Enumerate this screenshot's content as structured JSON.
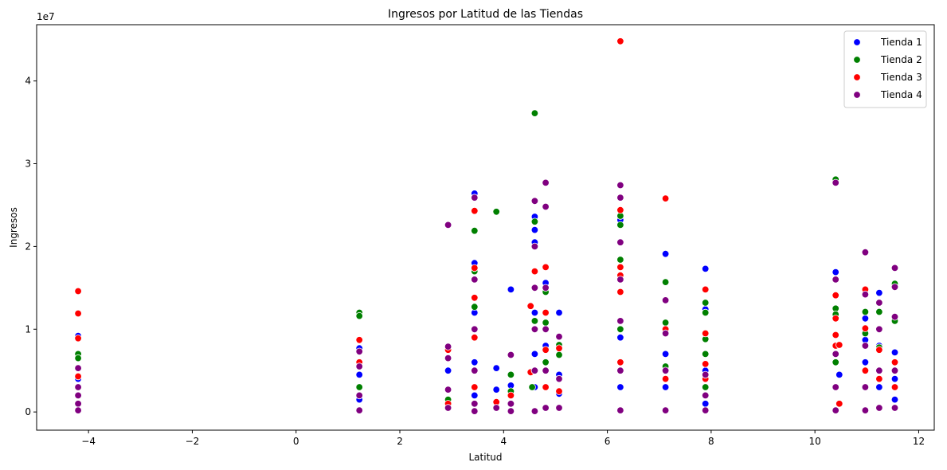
{
  "chart_data": {
    "type": "scatter",
    "title": "Ingresos por Latitud de las Tiendas",
    "xlabel": "Latitud",
    "ylabel": "Ingresos",
    "y_offset_label": "1e7",
    "xlim": [
      -5,
      12.3
    ],
    "ylim": [
      -0.22,
      4.68
    ],
    "x_ticks": [
      -4,
      -2,
      0,
      2,
      4,
      6,
      8,
      10,
      12
    ],
    "x_tick_labels": [
      "−4",
      "−2",
      "0",
      "2",
      "4",
      "6",
      "8",
      "10",
      "12"
    ],
    "y_ticks": [
      0,
      1,
      2,
      3,
      4
    ],
    "y_tick_labels": [
      "0",
      "1",
      "2",
      "3",
      "4"
    ],
    "grid": false,
    "legend_position": "top-right",
    "series": [
      {
        "name": "Tienda 1",
        "color": "#0000ff",
        "points": [
          [
            -4.2,
            0.92
          ],
          [
            -4.2,
            0.4
          ],
          [
            -4.2,
            0.1
          ],
          [
            1.22,
            0.77
          ],
          [
            1.22,
            0.45
          ],
          [
            1.22,
            0.15
          ],
          [
            2.93,
            0.5
          ],
          [
            2.93,
            0.1
          ],
          [
            3.44,
            2.64
          ],
          [
            3.44,
            1.8
          ],
          [
            3.44,
            1.2
          ],
          [
            3.44,
            0.6
          ],
          [
            3.44,
            0.2
          ],
          [
            3.86,
            0.53
          ],
          [
            3.86,
            0.27
          ],
          [
            4.14,
            1.48
          ],
          [
            4.14,
            0.32
          ],
          [
            4.14,
            0.1
          ],
          [
            4.6,
            2.36
          ],
          [
            4.6,
            2.2
          ],
          [
            4.6,
            2.05
          ],
          [
            4.6,
            1.7
          ],
          [
            4.6,
            1.2
          ],
          [
            4.6,
            0.7
          ],
          [
            4.6,
            0.3
          ],
          [
            4.81,
            1.56
          ],
          [
            4.81,
            0.8
          ],
          [
            4.81,
            0.3
          ],
          [
            5.07,
            1.2
          ],
          [
            5.07,
            0.45
          ],
          [
            5.07,
            0.22
          ],
          [
            6.25,
            2.32
          ],
          [
            6.25,
            1.6
          ],
          [
            6.25,
            0.9
          ],
          [
            6.25,
            0.3
          ],
          [
            7.12,
            1.91
          ],
          [
            7.12,
            0.7
          ],
          [
            7.12,
            0.3
          ],
          [
            7.89,
            1.73
          ],
          [
            7.89,
            1.24
          ],
          [
            7.89,
            0.5
          ],
          [
            7.89,
            0.1
          ],
          [
            10.4,
            1.69
          ],
          [
            10.4,
            0.8
          ],
          [
            10.4,
            0.3
          ],
          [
            10.47,
            0.45
          ],
          [
            10.97,
            1.13
          ],
          [
            10.97,
            0.87
          ],
          [
            10.97,
            0.6
          ],
          [
            10.97,
            0.3
          ],
          [
            11.24,
            1.44
          ],
          [
            11.24,
            0.8
          ],
          [
            11.24,
            0.3
          ],
          [
            11.54,
            0.72
          ],
          [
            11.54,
            0.4
          ],
          [
            11.54,
            0.15
          ]
        ]
      },
      {
        "name": "Tienda 2",
        "color": "#008000",
        "points": [
          [
            -4.2,
            0.7
          ],
          [
            -4.2,
            0.65
          ],
          [
            -4.2,
            0.3
          ],
          [
            1.22,
            1.2
          ],
          [
            1.22,
            1.16
          ],
          [
            1.22,
            0.3
          ],
          [
            2.93,
            0.15
          ],
          [
            3.44,
            2.19
          ],
          [
            3.44,
            1.7
          ],
          [
            3.44,
            1.27
          ],
          [
            3.44,
            0.5
          ],
          [
            3.86,
            2.42
          ],
          [
            4.14,
            0.45
          ],
          [
            4.14,
            0.25
          ],
          [
            4.55,
            0.3
          ],
          [
            4.6,
            3.61
          ],
          [
            4.6,
            2.3
          ],
          [
            4.6,
            1.1
          ],
          [
            4.6,
            0.5
          ],
          [
            4.81,
            1.45
          ],
          [
            4.81,
            1.08
          ],
          [
            4.81,
            0.6
          ],
          [
            5.07,
            0.81
          ],
          [
            5.07,
            0.69
          ],
          [
            6.25,
            2.37
          ],
          [
            6.25,
            2.26
          ],
          [
            6.25,
            1.84
          ],
          [
            6.25,
            1.0
          ],
          [
            7.12,
            1.57
          ],
          [
            7.12,
            1.08
          ],
          [
            7.12,
            0.55
          ],
          [
            7.89,
            1.32
          ],
          [
            7.89,
            1.2
          ],
          [
            7.89,
            0.88
          ],
          [
            7.89,
            0.7
          ],
          [
            7.89,
            0.3
          ],
          [
            10.4,
            2.81
          ],
          [
            10.4,
            1.25
          ],
          [
            10.4,
            1.18
          ],
          [
            10.4,
            0.6
          ],
          [
            10.97,
            1.21
          ],
          [
            10.97,
            0.95
          ],
          [
            11.24,
            1.21
          ],
          [
            11.24,
            0.78
          ],
          [
            11.54,
            1.55
          ],
          [
            11.54,
            1.1
          ],
          [
            11.54,
            0.6
          ]
        ]
      },
      {
        "name": "Tienda 3",
        "color": "#ff0000",
        "points": [
          [
            -4.2,
            1.46
          ],
          [
            -4.2,
            1.19
          ],
          [
            -4.2,
            0.89
          ],
          [
            -4.2,
            0.43
          ],
          [
            1.22,
            0.87
          ],
          [
            1.22,
            0.6
          ],
          [
            2.93,
            0.75
          ],
          [
            2.93,
            0.1
          ],
          [
            3.44,
            2.43
          ],
          [
            3.44,
            1.74
          ],
          [
            3.44,
            1.38
          ],
          [
            3.44,
            0.9
          ],
          [
            3.44,
            0.3
          ],
          [
            3.86,
            0.12
          ],
          [
            4.14,
            0.2
          ],
          [
            4.52,
            1.28
          ],
          [
            4.52,
            0.48
          ],
          [
            4.6,
            1.7
          ],
          [
            4.6,
            1.5
          ],
          [
            4.6,
            1.0
          ],
          [
            4.6,
            0.5
          ],
          [
            4.81,
            1.75
          ],
          [
            4.81,
            1.2
          ],
          [
            4.81,
            0.75
          ],
          [
            4.81,
            0.3
          ],
          [
            5.07,
            0.77
          ],
          [
            5.07,
            0.25
          ],
          [
            6.25,
            4.48
          ],
          [
            6.25,
            2.44
          ],
          [
            6.25,
            1.75
          ],
          [
            6.25,
            1.65
          ],
          [
            6.25,
            1.45
          ],
          [
            6.25,
            1.1
          ],
          [
            6.25,
            0.6
          ],
          [
            7.12,
            2.58
          ],
          [
            7.12,
            1.0
          ],
          [
            7.12,
            0.4
          ],
          [
            7.89,
            1.48
          ],
          [
            7.89,
            0.95
          ],
          [
            7.89,
            0.58
          ],
          [
            7.89,
            0.4
          ],
          [
            10.4,
            1.41
          ],
          [
            10.4,
            1.13
          ],
          [
            10.4,
            0.93
          ],
          [
            10.4,
            0.8
          ],
          [
            10.47,
            0.81
          ],
          [
            10.47,
            0.1
          ],
          [
            10.97,
            1.48
          ],
          [
            10.97,
            1.01
          ],
          [
            10.97,
            0.5
          ],
          [
            11.24,
            0.75
          ],
          [
            11.24,
            0.5
          ],
          [
            11.24,
            0.4
          ],
          [
            11.54,
            0.6
          ],
          [
            11.54,
            0.3
          ]
        ]
      },
      {
        "name": "Tienda 4",
        "color": "#800080",
        "points": [
          [
            -4.2,
            0.53
          ],
          [
            -4.2,
            0.3
          ],
          [
            -4.2,
            0.2
          ],
          [
            -4.2,
            0.1
          ],
          [
            -4.2,
            0.02
          ],
          [
            1.22,
            0.73
          ],
          [
            1.22,
            0.55
          ],
          [
            1.22,
            0.2
          ],
          [
            1.22,
            0.02
          ],
          [
            2.93,
            2.26
          ],
          [
            2.93,
            0.79
          ],
          [
            2.93,
            0.65
          ],
          [
            2.93,
            0.27
          ],
          [
            2.93,
            0.05
          ],
          [
            3.44,
            2.59
          ],
          [
            3.44,
            1.6
          ],
          [
            3.44,
            1.0
          ],
          [
            3.44,
            0.5
          ],
          [
            3.44,
            0.1
          ],
          [
            3.44,
            0.01
          ],
          [
            3.86,
            0.05
          ],
          [
            4.14,
            0.69
          ],
          [
            4.14,
            0.1
          ],
          [
            4.14,
            0.01
          ],
          [
            4.6,
            2.55
          ],
          [
            4.6,
            2.0
          ],
          [
            4.6,
            1.5
          ],
          [
            4.6,
            1.0
          ],
          [
            4.6,
            0.5
          ],
          [
            4.6,
            0.01
          ],
          [
            4.81,
            2.77
          ],
          [
            4.81,
            2.48
          ],
          [
            4.81,
            1.5
          ],
          [
            4.81,
            1.0
          ],
          [
            4.81,
            0.5
          ],
          [
            4.81,
            0.05
          ],
          [
            5.07,
            0.91
          ],
          [
            5.07,
            0.4
          ],
          [
            5.07,
            0.05
          ],
          [
            6.25,
            2.74
          ],
          [
            6.25,
            2.59
          ],
          [
            6.25,
            2.05
          ],
          [
            6.25,
            1.6
          ],
          [
            6.25,
            1.1
          ],
          [
            6.25,
            0.5
          ],
          [
            6.25,
            0.02
          ],
          [
            7.12,
            1.35
          ],
          [
            7.12,
            0.95
          ],
          [
            7.12,
            0.5
          ],
          [
            7.12,
            0.02
          ],
          [
            7.89,
            0.45
          ],
          [
            7.89,
            0.2
          ],
          [
            7.89,
            0.02
          ],
          [
            10.4,
            2.77
          ],
          [
            10.4,
            1.6
          ],
          [
            10.4,
            0.7
          ],
          [
            10.4,
            0.3
          ],
          [
            10.4,
            0.02
          ],
          [
            10.97,
            1.93
          ],
          [
            10.97,
            1.42
          ],
          [
            10.97,
            0.8
          ],
          [
            10.97,
            0.3
          ],
          [
            10.97,
            0.02
          ],
          [
            11.24,
            1.32
          ],
          [
            11.24,
            1.0
          ],
          [
            11.24,
            0.5
          ],
          [
            11.24,
            0.05
          ],
          [
            11.54,
            1.74
          ],
          [
            11.54,
            1.51
          ],
          [
            11.54,
            1.15
          ],
          [
            11.54,
            0.5
          ],
          [
            11.54,
            0.05
          ]
        ]
      }
    ]
  }
}
